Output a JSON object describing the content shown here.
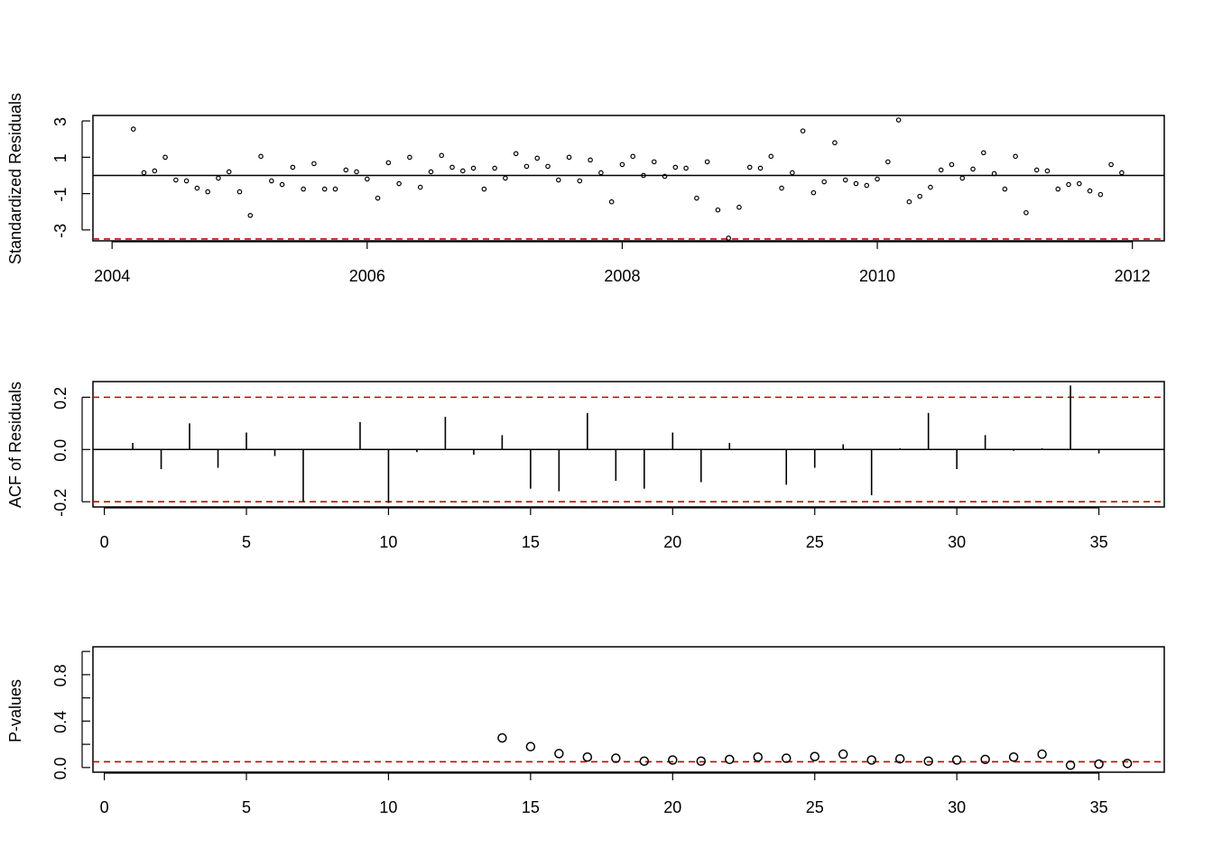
{
  "colors": {
    "axis": "#000000",
    "refline": "#cc0000",
    "background": "#ffffff"
  },
  "chart_data": [
    {
      "type": "scatter",
      "ylabel": "Standardized Residuals",
      "xlim": [
        2003.85,
        2012.25
      ],
      "ylim": [
        -3.6,
        3.3
      ],
      "x_ticks": [
        2004,
        2006,
        2008,
        2010,
        2012
      ],
      "y_ticks": [
        -3,
        -1,
        1,
        3
      ],
      "hline": 0,
      "ref_line": -3.5,
      "x_start": 2004.1667,
      "x_step": 0.083333,
      "values": [
        2.55,
        0.15,
        0.25,
        1.0,
        -0.25,
        -0.3,
        -0.7,
        -0.9,
        -0.15,
        0.2,
        -0.9,
        -2.2,
        1.05,
        -0.3,
        -0.5,
        0.45,
        -0.75,
        0.65,
        -0.75,
        -0.75,
        0.3,
        0.2,
        -0.2,
        -1.25,
        0.7,
        -0.45,
        1.0,
        -0.65,
        0.2,
        1.1,
        0.45,
        0.25,
        0.4,
        -0.75,
        0.4,
        -0.15,
        1.2,
        0.5,
        0.95,
        0.5,
        -0.25,
        1.0,
        -0.3,
        0.85,
        0.15,
        -1.45,
        0.6,
        1.05,
        0.0,
        0.75,
        -0.05,
        0.45,
        0.4,
        -1.25,
        0.75,
        -1.9,
        -3.45,
        -1.75,
        0.45,
        0.4,
        1.05,
        -0.7,
        0.15,
        2.45,
        -0.95,
        -0.35,
        1.8,
        -0.25,
        -0.45,
        -0.55,
        -0.2,
        0.75,
        3.05,
        -1.45,
        -1.15,
        -0.65,
        0.3,
        0.6,
        -0.15,
        0.35,
        1.25,
        0.1,
        -0.75,
        1.05,
        -2.05,
        0.3,
        0.25,
        -0.75,
        -0.5,
        -0.45,
        -0.85,
        -1.05,
        0.6,
        0.15
      ]
    },
    {
      "type": "bar",
      "ylabel": "ACF of Residuals",
      "xlim": [
        -0.4,
        37.3
      ],
      "ylim": [
        -0.22,
        0.26
      ],
      "x_ticks": [
        0,
        5,
        10,
        15,
        20,
        25,
        30,
        35
      ],
      "y_ticks": [
        -0.2,
        0.0,
        0.2
      ],
      "y_tick_labels": [
        "-0.2",
        "0.0",
        "0.2"
      ],
      "hline": 0,
      "ref_lines": [
        0.2,
        -0.2
      ],
      "lags": [
        1,
        2,
        3,
        4,
        5,
        6,
        7,
        8,
        9,
        10,
        11,
        12,
        13,
        14,
        15,
        16,
        17,
        18,
        19,
        20,
        21,
        22,
        23,
        24,
        25,
        26,
        27,
        28,
        29,
        30,
        31,
        32,
        33,
        34,
        35
      ],
      "values": [
        0.025,
        -0.075,
        0.1,
        -0.07,
        0.065,
        -0.025,
        -0.2,
        0.0,
        0.105,
        -0.205,
        -0.01,
        0.125,
        -0.02,
        0.055,
        -0.15,
        -0.16,
        0.14,
        -0.12,
        -0.15,
        0.065,
        -0.125,
        0.025,
        0.0,
        -0.135,
        -0.07,
        0.02,
        -0.175,
        0.005,
        0.14,
        -0.075,
        0.055,
        -0.005,
        0.005,
        0.245,
        -0.015
      ]
    },
    {
      "type": "scatter",
      "ylabel": "P-values",
      "xlim": [
        -0.4,
        37.3
      ],
      "ylim": [
        -0.04,
        1.04
      ],
      "x_ticks": [
        0,
        5,
        10,
        15,
        20,
        25,
        30,
        35
      ],
      "y_ticks": [
        0.0,
        0.2,
        0.4,
        0.6,
        0.8,
        1.0
      ],
      "y_tick_labels": [
        "0.0",
        "",
        "0.4",
        "",
        "0.8",
        ""
      ],
      "ref_line": 0.05,
      "lags": [
        14,
        15,
        16,
        17,
        18,
        19,
        20,
        21,
        22,
        23,
        24,
        25,
        26,
        27,
        28,
        29,
        30,
        31,
        32,
        33,
        34,
        35,
        36
      ],
      "values": [
        0.255,
        0.18,
        0.12,
        0.09,
        0.08,
        0.055,
        0.065,
        0.055,
        0.07,
        0.09,
        0.08,
        0.095,
        0.115,
        0.065,
        0.075,
        0.055,
        0.065,
        0.07,
        0.09,
        0.115,
        0.02,
        0.03,
        0.035
      ]
    }
  ]
}
